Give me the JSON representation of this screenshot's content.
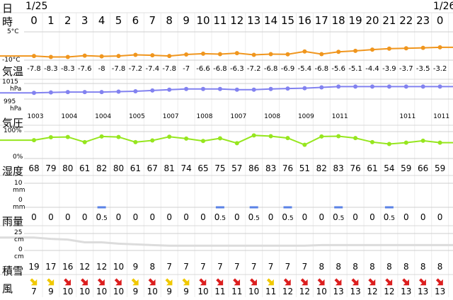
{
  "header": {
    "day_label": "日",
    "time_label": "時",
    "date_start": "1/25",
    "date_end": "1/26"
  },
  "hours": [
    "0",
    "1",
    "2",
    "3",
    "4",
    "5",
    "6",
    "7",
    "8",
    "9",
    "10",
    "11",
    "12",
    "13",
    "14",
    "15",
    "16",
    "17",
    "18",
    "19",
    "20",
    "21",
    "22",
    "23",
    "0"
  ],
  "temperature": {
    "label": "気温",
    "axis_top": "5°C",
    "axis_bottom": "-10°C",
    "range": [
      -10,
      5
    ],
    "color": "#f0961e",
    "values": [
      -7.8,
      -8.3,
      -8.3,
      -7.6,
      -8,
      -7.8,
      -7.2,
      -7.4,
      -7.8,
      -7,
      -6.6,
      -6.8,
      -6.3,
      -7.2,
      -6.8,
      -6.9,
      -5.4,
      -6.8,
      -5.6,
      -5.1,
      -4.4,
      -3.9,
      -3.7,
      -3.5,
      -3.2
    ],
    "labels": [
      "-7.8",
      "-8.3",
      "-8.3",
      "-7.6",
      "-8",
      "-7.8",
      "-7.2",
      "-7.4",
      "-7.8",
      "-7",
      "-6.6",
      "-6.8",
      "-6.3",
      "-7.2",
      "-6.8",
      "-6.9",
      "-5.4",
      "-6.8",
      "-5.6",
      "-5.1",
      "-4.4",
      "-3.9",
      "-3.7",
      "-3.5",
      "-3.2"
    ]
  },
  "pressure": {
    "label": "気圧",
    "axis_top": "1015",
    "axis_top_unit": "hPa",
    "axis_bottom": "995",
    "axis_bottom_unit": "hPa",
    "range": [
      995,
      1015
    ],
    "color": "#8282f0",
    "values": [
      1003,
      1003.5,
      1004,
      1004,
      1004,
      1004.5,
      1005,
      1006,
      1007,
      1008,
      1008,
      1008,
      1007,
      1007,
      1008,
      1008.5,
      1009,
      1010,
      1011,
      1011,
      1011,
      1011,
      1011,
      1011,
      1011
    ],
    "labels": [
      "1003",
      "",
      "1004",
      "",
      "1004",
      "",
      "1005",
      "",
      "1007",
      "",
      "1008",
      "",
      "1007",
      "",
      "1008",
      "",
      "1009",
      "",
      "1011",
      "",
      "",
      "",
      "1011",
      "",
      "1011"
    ]
  },
  "humidity": {
    "label": "湿度",
    "axis_top": "100%",
    "axis_bottom": "0%",
    "color": "#96e61e",
    "values": [
      68,
      79,
      80,
      61,
      82,
      80,
      61,
      67,
      81,
      74,
      65,
      75,
      57,
      86,
      83,
      76,
      51,
      82,
      83,
      76,
      61,
      54,
      59,
      66,
      59
    ],
    "labels": [
      "68",
      "79",
      "80",
      "61",
      "82",
      "80",
      "61",
      "67",
      "81",
      "74",
      "65",
      "75",
      "57",
      "86",
      "83",
      "76",
      "51",
      "82",
      "83",
      "76",
      "61",
      "54",
      "59",
      "66",
      "59"
    ]
  },
  "rain": {
    "label": "雨量",
    "axis_top": "10",
    "axis_top_unit": "mm",
    "axis_bottom": "0",
    "axis_bottom_unit": "mm",
    "color": "#5a82e6",
    "values": [
      0,
      0,
      0,
      0,
      0.5,
      0,
      0,
      0,
      0,
      0,
      0,
      0.5,
      0,
      0.5,
      0,
      0.5,
      0,
      0,
      0.5,
      0,
      0,
      0.5,
      0,
      0,
      0
    ],
    "labels": [
      "0",
      "0",
      "0",
      "0",
      "0.5",
      "0",
      "0",
      "0",
      "0",
      "0",
      "0",
      "0.5",
      "0",
      "0.5",
      "0",
      "0.5",
      "0",
      "0",
      "0.5",
      "0",
      "0",
      "0.5",
      "0",
      "0",
      "0"
    ]
  },
  "snow": {
    "label": "積雪",
    "axis_top": "25",
    "axis_top_unit": "cm",
    "axis_bottom": "0",
    "axis_bottom_unit": "cm",
    "color": "#dcdcdc",
    "values": [
      19,
      17,
      16,
      12,
      12,
      10,
      9,
      8,
      7,
      7,
      7,
      7,
      7,
      7,
      7,
      7,
      7,
      8,
      8,
      8,
      8,
      8,
      8,
      8,
      8
    ],
    "labels": [
      "19",
      "17",
      "16",
      "12",
      "12",
      "10",
      "9",
      "8",
      "7",
      "7",
      "7",
      "7",
      "7",
      "7",
      "7",
      "7",
      "7",
      "8",
      "8",
      "8",
      "8",
      "8",
      "8",
      "8",
      "8"
    ]
  },
  "wind": {
    "label": "風",
    "speeds": [
      "7",
      "9",
      "10",
      "10",
      "10",
      "10",
      "9",
      "10",
      "9",
      "9",
      "10",
      "11",
      "11",
      "10",
      "11",
      "12",
      "12",
      "10",
      "13",
      "13",
      "12",
      "12",
      "13",
      "13",
      "13"
    ],
    "directions": [
      135,
      135,
      135,
      135,
      135,
      135,
      135,
      135,
      135,
      135,
      135,
      135,
      135,
      135,
      135,
      135,
      135,
      135,
      135,
      135,
      135,
      135,
      135,
      135,
      135
    ],
    "arrow_colors": [
      "#f0c800",
      "#f0c800",
      "#dc1e1e",
      "#dc1e1e",
      "#dc1e1e",
      "#dc1e1e",
      "#f0c800",
      "#dc1e1e",
      "#f0c800",
      "#f0c800",
      "#dc1e1e",
      "#dc1e1e",
      "#dc1e1e",
      "#dc1e1e",
      "#f0c800",
      "#dc1e1e",
      "#dc1e1e",
      "#dc1e1e",
      "#dc1e1e",
      "#dc1e1e",
      "#dc1e1e",
      "#dc1e1e",
      "#dc1e1e",
      "#dc1e1e",
      "#dc1e1e"
    ]
  }
}
